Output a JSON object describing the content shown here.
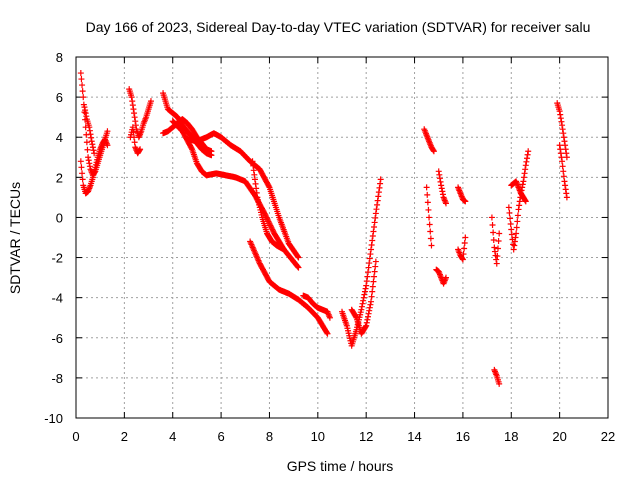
{
  "chart_data": {
    "type": "scatter",
    "title": "Day 166 of 2023, Sidereal Day-to-day VTEC variation (SDTVAR) for receiver salu",
    "xlabel": "GPS time / hours",
    "ylabel": "SDTVAR / TECUs",
    "xlim": [
      0,
      22
    ],
    "ylim": [
      -10,
      8
    ],
    "xticks": [
      "0",
      "2",
      "4",
      "6",
      "8",
      "10",
      "12",
      "14",
      "16",
      "18",
      "20",
      "22"
    ],
    "yticks": [
      "-10",
      "-8",
      "-6",
      "-4",
      "-2",
      "0",
      "2",
      "4",
      "6",
      "8"
    ],
    "grid": true,
    "marker": "+",
    "color": "#ff0000",
    "segments": [
      {
        "x": [
          0.2,
          0.3,
          0.4,
          0.5,
          0.6,
          0.7,
          0.8,
          0.9,
          1.0,
          1.1,
          1.2,
          1.3
        ],
        "y": [
          7.2,
          6.0,
          4.5,
          3.0,
          2.4,
          2.1,
          2.3,
          2.7,
          3.1,
          3.5,
          3.9,
          4.3
        ]
      },
      {
        "x": [
          0.2,
          0.3,
          0.4,
          0.5,
          0.6,
          0.7,
          0.8,
          0.9,
          1.0,
          1.1,
          1.2,
          1.3
        ],
        "y": [
          2.8,
          1.6,
          1.2,
          1.3,
          1.6,
          2.0,
          2.5,
          3.0,
          3.4,
          3.7,
          3.9,
          3.6
        ]
      },
      {
        "x": [
          0.35,
          0.45,
          0.55,
          0.65,
          0.75
        ],
        "y": [
          5.5,
          4.9,
          4.5,
          3.8,
          3.2
        ]
      },
      {
        "x": [
          2.2,
          2.3,
          2.4,
          2.5,
          2.6,
          2.7,
          2.8,
          2.9,
          3.0,
          3.1
        ],
        "y": [
          6.4,
          6.0,
          5.2,
          4.4,
          4.0,
          4.3,
          4.7,
          5.0,
          5.4,
          5.8
        ]
      },
      {
        "x": [
          2.25,
          2.35,
          2.45,
          2.55,
          2.65
        ],
        "y": [
          4.0,
          4.5,
          3.5,
          3.2,
          3.4
        ]
      },
      {
        "x": [
          3.6,
          3.8,
          4.0,
          4.2,
          4.4,
          4.6,
          4.8,
          5.0,
          5.2,
          5.4,
          5.6
        ],
        "y": [
          6.2,
          5.4,
          5.2,
          5.0,
          4.6,
          4.3,
          4.0,
          3.7,
          3.4,
          3.2,
          3.1
        ]
      },
      {
        "x": [
          3.6,
          3.8,
          4.0,
          4.2,
          4.4,
          4.6,
          4.8,
          5.0,
          5.2,
          5.4,
          5.6
        ],
        "y": [
          4.2,
          4.3,
          4.5,
          4.7,
          4.9,
          4.7,
          4.4,
          4.0,
          3.7,
          3.4,
          3.3
        ]
      },
      {
        "x": [
          4.0,
          4.4,
          4.8,
          5.0,
          5.2,
          5.4,
          5.8,
          6.2,
          6.6,
          7.0,
          7.4,
          7.8,
          8.2,
          8.6,
          9.0,
          9.2
        ],
        "y": [
          4.8,
          4.3,
          3.4,
          2.7,
          2.3,
          2.1,
          2.2,
          2.1,
          2.0,
          1.8,
          1.1,
          0.2,
          -0.8,
          -1.6,
          -2.2,
          -2.5
        ]
      },
      {
        "x": [
          4.6,
          5.0,
          5.4,
          5.7,
          6.0,
          6.4,
          6.8,
          7.2,
          7.6,
          8.0,
          8.4,
          8.8,
          9.2
        ],
        "y": [
          3.9,
          3.8,
          4.0,
          4.2,
          4.0,
          3.6,
          3.3,
          2.8,
          2.4,
          1.5,
          0.0,
          -1.3,
          -2.0
        ]
      },
      {
        "x": [
          7.3,
          7.5,
          7.7,
          7.9,
          8.1,
          8.3,
          8.6
        ],
        "y": [
          2.8,
          1.0,
          0.0,
          -0.8,
          -1.2,
          -1.4,
          -1.6
        ]
      },
      {
        "x": [
          7.2,
          7.6,
          8.0,
          8.4,
          8.8,
          9.2,
          9.6,
          10.0,
          10.4
        ],
        "y": [
          -1.2,
          -2.3,
          -3.2,
          -3.6,
          -3.8,
          -4.1,
          -4.5,
          -5.0,
          -5.8
        ]
      },
      {
        "x": [
          9.4,
          9.6,
          9.8,
          10.0,
          10.2,
          10.4,
          10.5
        ],
        "y": [
          -3.9,
          -4.0,
          -4.3,
          -4.5,
          -4.6,
          -4.7,
          -5.0
        ]
      },
      {
        "x": [
          11.0,
          11.2,
          11.4,
          11.6,
          11.8,
          12.0,
          12.2,
          12.4,
          12.6
        ],
        "y": [
          -4.7,
          -5.4,
          -6.4,
          -5.6,
          -4.6,
          -3.4,
          -1.6,
          0.2,
          1.9
        ]
      },
      {
        "x": [
          11.4,
          11.6,
          11.8,
          12.0,
          12.2,
          12.4
        ],
        "y": [
          -4.6,
          -5.0,
          -5.8,
          -5.4,
          -4.2,
          -2.2
        ]
      },
      {
        "x": [
          14.4,
          14.5,
          14.6,
          14.7,
          14.8
        ],
        "y": [
          4.4,
          4.1,
          3.8,
          3.5,
          3.3
        ]
      },
      {
        "x": [
          14.5,
          14.6,
          14.7
        ],
        "y": [
          1.5,
          0.0,
          -1.4
        ]
      },
      {
        "x": [
          14.9,
          15.0,
          15.1,
          15.2,
          15.3
        ],
        "y": [
          -2.6,
          -2.7,
          -3.0,
          -3.3,
          -3.0
        ]
      },
      {
        "x": [
          15.0,
          15.1,
          15.2,
          15.3
        ],
        "y": [
          2.3,
          1.6,
          1.0,
          0.7
        ]
      },
      {
        "x": [
          15.8,
          15.9,
          16.0,
          16.1
        ],
        "y": [
          1.5,
          1.2,
          0.9,
          0.8
        ]
      },
      {
        "x": [
          15.8,
          15.9,
          16.0,
          16.1
        ],
        "y": [
          -1.6,
          -1.9,
          -2.1,
          -1.0
        ]
      },
      {
        "x": [
          17.2,
          17.3,
          17.4,
          17.5
        ],
        "y": [
          0.0,
          -1.5,
          -2.3,
          -0.8
        ]
      },
      {
        "x": [
          17.3,
          17.4,
          17.5
        ],
        "y": [
          -7.6,
          -7.9,
          -8.3
        ]
      },
      {
        "x": [
          17.9,
          18.0,
          18.1,
          18.2,
          18.3,
          18.4,
          18.5,
          18.6,
          18.7
        ],
        "y": [
          0.5,
          -0.6,
          -1.6,
          -0.8,
          0.4,
          1.2,
          1.8,
          2.6,
          3.3
        ]
      },
      {
        "x": [
          18.0,
          18.2,
          18.4,
          18.6
        ],
        "y": [
          1.6,
          1.8,
          1.2,
          0.8
        ]
      },
      {
        "x": [
          19.9,
          20.0,
          20.1,
          20.2,
          20.3
        ],
        "y": [
          5.7,
          5.3,
          4.6,
          3.8,
          3.0
        ]
      },
      {
        "x": [
          20.0,
          20.1,
          20.2,
          20.3
        ],
        "y": [
          3.6,
          2.8,
          1.8,
          1.0
        ]
      }
    ]
  }
}
